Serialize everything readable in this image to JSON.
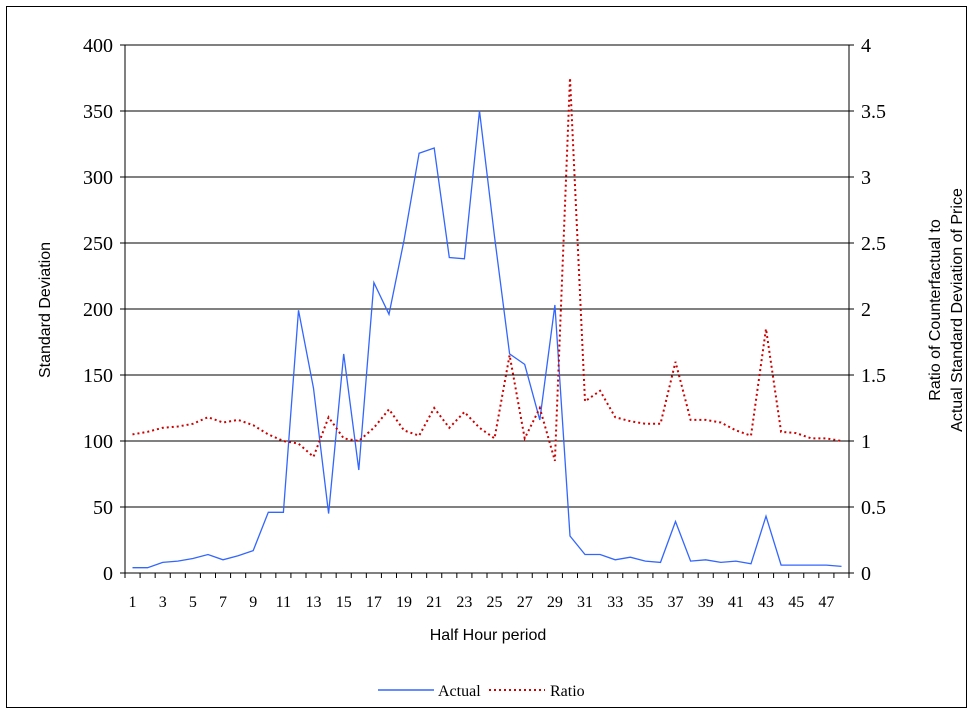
{
  "chart_data": {
    "type": "line",
    "title": "",
    "xlabel": "Half Hour period",
    "ylabel": "Standard Deviation",
    "y2label_line1": "Ratio of Counterfactual to",
    "y2label_line2": "Actual Standard Deviation of Price",
    "x": [
      1,
      2,
      3,
      4,
      5,
      6,
      7,
      8,
      9,
      10,
      11,
      12,
      13,
      14,
      15,
      16,
      17,
      18,
      19,
      20,
      21,
      22,
      23,
      24,
      25,
      26,
      27,
      28,
      29,
      30,
      31,
      32,
      33,
      34,
      35,
      36,
      37,
      38,
      39,
      40,
      41,
      42,
      43,
      44,
      45,
      46,
      47,
      48
    ],
    "x_tick_labels": [
      "1",
      "3",
      "5",
      "7",
      "9",
      "11",
      "13",
      "15",
      "17",
      "19",
      "21",
      "23",
      "25",
      "27",
      "29",
      "31",
      "33",
      "35",
      "37",
      "39",
      "41",
      "43",
      "45",
      "47"
    ],
    "ylim": [
      0,
      400
    ],
    "y_ticks": [
      "0",
      "50",
      "100",
      "150",
      "200",
      "250",
      "300",
      "350",
      "400"
    ],
    "y2lim": [
      0,
      4
    ],
    "y2_ticks": [
      "0",
      "0.5",
      "1",
      "1.5",
      "2",
      "2.5",
      "3",
      "3.5",
      "4"
    ],
    "grid": "horizontal",
    "legend_position": "bottom",
    "series": [
      {
        "name": "Actual",
        "axis": "left",
        "color": "#3366ff",
        "style": "solid",
        "values": [
          4,
          4,
          8,
          9,
          11,
          14,
          10,
          13,
          17,
          46,
          46,
          199,
          140,
          45,
          166,
          78,
          220,
          196,
          252,
          318,
          322,
          239,
          238,
          350,
          255,
          166,
          158,
          116,
          203,
          28,
          14,
          14,
          10,
          12,
          9,
          8,
          39,
          9,
          10,
          8,
          9,
          7,
          43,
          6,
          6,
          6,
          6,
          5
        ]
      },
      {
        "name": "Ratio",
        "axis": "right",
        "color": "#cc0000",
        "style": "dotted",
        "values": [
          1.05,
          1.07,
          1.1,
          1.11,
          1.13,
          1.18,
          1.14,
          1.16,
          1.12,
          1.05,
          1.0,
          0.98,
          0.88,
          1.18,
          1.02,
          1.0,
          1.1,
          1.24,
          1.08,
          1.04,
          1.25,
          1.1,
          1.22,
          1.1,
          1.02,
          1.65,
          1.02,
          1.25,
          0.85,
          3.75,
          1.3,
          1.38,
          1.18,
          1.15,
          1.13,
          1.13,
          1.6,
          1.16,
          1.16,
          1.14,
          1.08,
          1.04,
          1.85,
          1.07,
          1.06,
          1.02,
          1.02,
          1.0
        ]
      }
    ]
  }
}
